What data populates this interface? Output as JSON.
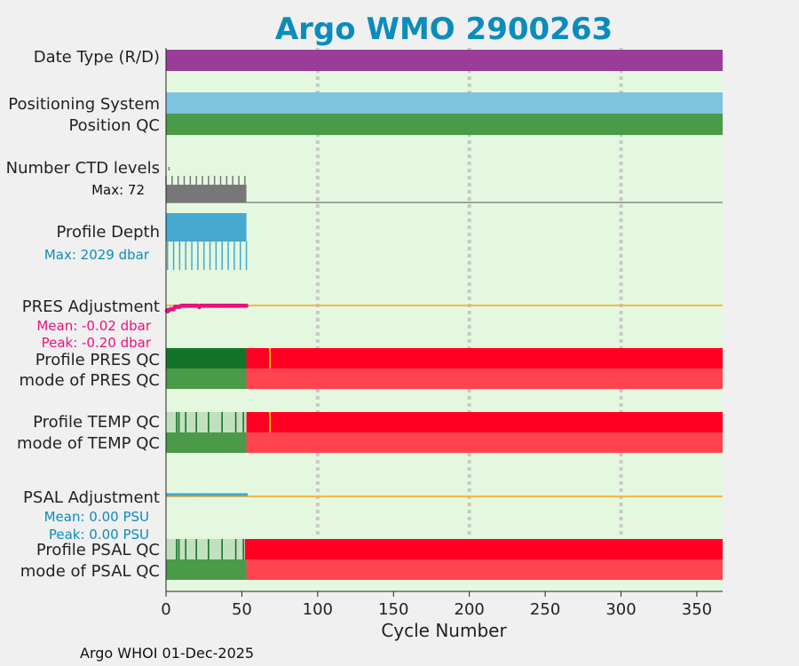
{
  "chart_data": {
    "type": "bar",
    "title": "Argo WMO 2900263",
    "xlabel": "Cycle Number",
    "xlim": [
      0,
      367
    ],
    "xticks": [
      0,
      50,
      100,
      150,
      200,
      250,
      300,
      350
    ],
    "grid_x": [
      100,
      200,
      300
    ],
    "footer": "Argo WHOI 01-Dec-2025",
    "rows": {
      "date_type": {
        "label": "Date Type (R/D)",
        "color": "#993d99",
        "from": 0,
        "to": 367
      },
      "positioning": {
        "label": "Positioning System",
        "color": "#7ec4de",
        "from": 0,
        "to": 367
      },
      "position_qc": {
        "label": "Position QC",
        "color": "#4a9a48",
        "from": 0,
        "to": 367
      },
      "ctd_levels": {
        "label": "Number CTD levels",
        "max_label": "Max: 72",
        "max_value": 72,
        "color": "#777777",
        "last_cycle": 53
      },
      "profile_depth": {
        "label": "Profile Depth",
        "max_label": "Max: 2029 dbar",
        "max_value": 2029,
        "color": "#45a8cf",
        "last_cycle": 53
      },
      "pres_adjustment": {
        "label": "PRES Adjustment",
        "mean_label": "Mean: -0.02 dbar",
        "peak_label": "Peak: -0.20 dbar",
        "mean": -0.02,
        "peak": -0.2,
        "color": "#e8127c",
        "zero_line_color": "#f2b744"
      },
      "profile_pres_qc": {
        "label": "Profile PRES QC",
        "good_color": "#14732a",
        "bad_color": "#ff0022",
        "good_to": 53,
        "marker_cycle": 68,
        "marker_color": "#ffd700"
      },
      "mode_pres_qc": {
        "label": "mode of PRES QC",
        "good_color": "#4a9a48",
        "bad_color": "#ff4450",
        "good_to": 53
      },
      "profile_temp_qc": {
        "label": "Profile TEMP QC",
        "good_color": "#c3e0be",
        "bad_color": "#ff0022",
        "good_to": 53,
        "marker_cycle": 68,
        "marker_color": "#ffd700"
      },
      "mode_temp_qc": {
        "label": "mode of TEMP QC",
        "good_color": "#4a9a48",
        "bad_color": "#ff4450",
        "good_to": 53
      },
      "psal_adjustment": {
        "label": "PSAL Adjustment",
        "mean_label": "Mean: 0.00 PSU",
        "peak_label": "Peak: 0.00 PSU",
        "mean": 0.0,
        "peak": 0.0,
        "color": "#45a8cf",
        "zero_line_color": "#f2b744"
      },
      "profile_psal_qc": {
        "label": "Profile PSAL QC",
        "good_color": "#c3e0be",
        "bad_color": "#ff0022",
        "good_to": 52
      },
      "mode_psal_qc": {
        "label": "mode of PSAL QC",
        "good_color": "#4a9a48",
        "bad_color": "#ff4450",
        "good_to": 53
      }
    },
    "sub_colors": {
      "ctd_max": "#111111",
      "depth_max": "#0b8cbc",
      "pres": "#e8127c",
      "psal": "#0b8cbc"
    },
    "plot_background": "#e4f8e0",
    "dark_green": "#14732a"
  }
}
